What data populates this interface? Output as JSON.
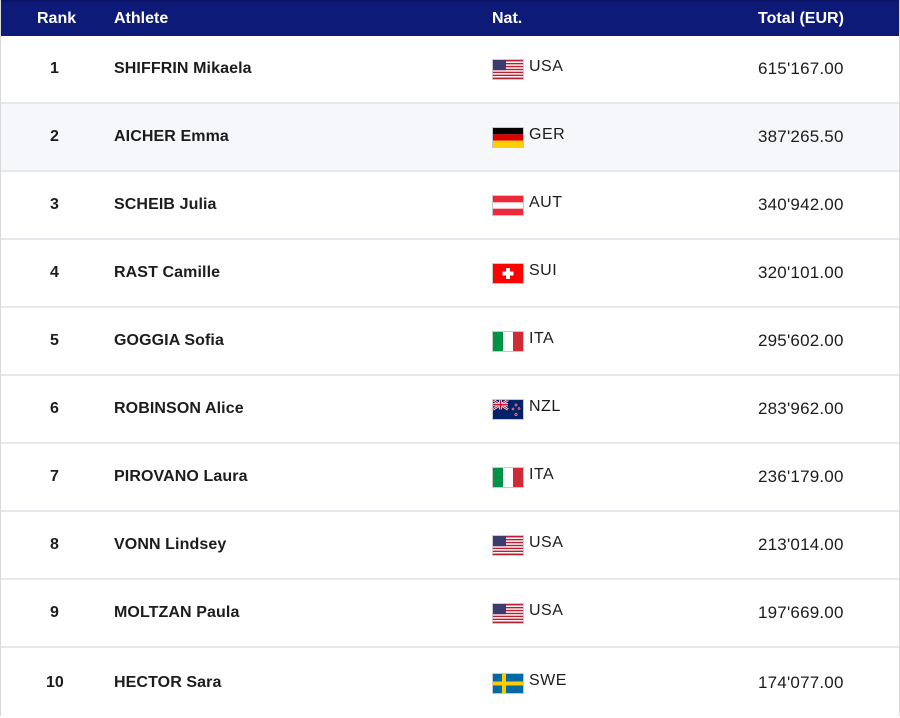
{
  "headers": {
    "rank": "Rank",
    "athlete": "Athlete",
    "nat": "Nat.",
    "total": "Total (EUR)"
  },
  "rows": [
    {
      "rank": "1",
      "athlete": "SHIFFRIN Mikaela",
      "nat": "USA",
      "total": "615'167.00",
      "flag": "usa-flag-icon"
    },
    {
      "rank": "2",
      "athlete": "AICHER Emma",
      "nat": "GER",
      "total": "387'265.50",
      "flag": "germany-flag-icon"
    },
    {
      "rank": "3",
      "athlete": "SCHEIB Julia",
      "nat": "AUT",
      "total": "340'942.00",
      "flag": "austria-flag-icon"
    },
    {
      "rank": "4",
      "athlete": "RAST Camille",
      "nat": "SUI",
      "total": "320'101.00",
      "flag": "switzerland-flag-icon"
    },
    {
      "rank": "5",
      "athlete": "GOGGIA Sofia",
      "nat": "ITA",
      "total": "295'602.00",
      "flag": "italy-flag-icon"
    },
    {
      "rank": "6",
      "athlete": "ROBINSON Alice",
      "nat": "NZL",
      "total": "283'962.00",
      "flag": "new-zealand-flag-icon"
    },
    {
      "rank": "7",
      "athlete": "PIROVANO Laura",
      "nat": "ITA",
      "total": "236'179.00",
      "flag": "italy-flag-icon"
    },
    {
      "rank": "8",
      "athlete": "VONN Lindsey",
      "nat": "USA",
      "total": "213'014.00",
      "flag": "usa-flag-icon"
    },
    {
      "rank": "9",
      "athlete": "MOLTZAN Paula",
      "nat": "USA",
      "total": "197'669.00",
      "flag": "usa-flag-icon"
    },
    {
      "rank": "10",
      "athlete": "HECTOR Sara",
      "nat": "SWE",
      "total": "174'077.00",
      "flag": "sweden-flag-icon"
    }
  ],
  "colors": {
    "header_bg": "#0d1a78",
    "header_text": "#ffffff",
    "alt_row_bg": "#f6f7fa"
  }
}
